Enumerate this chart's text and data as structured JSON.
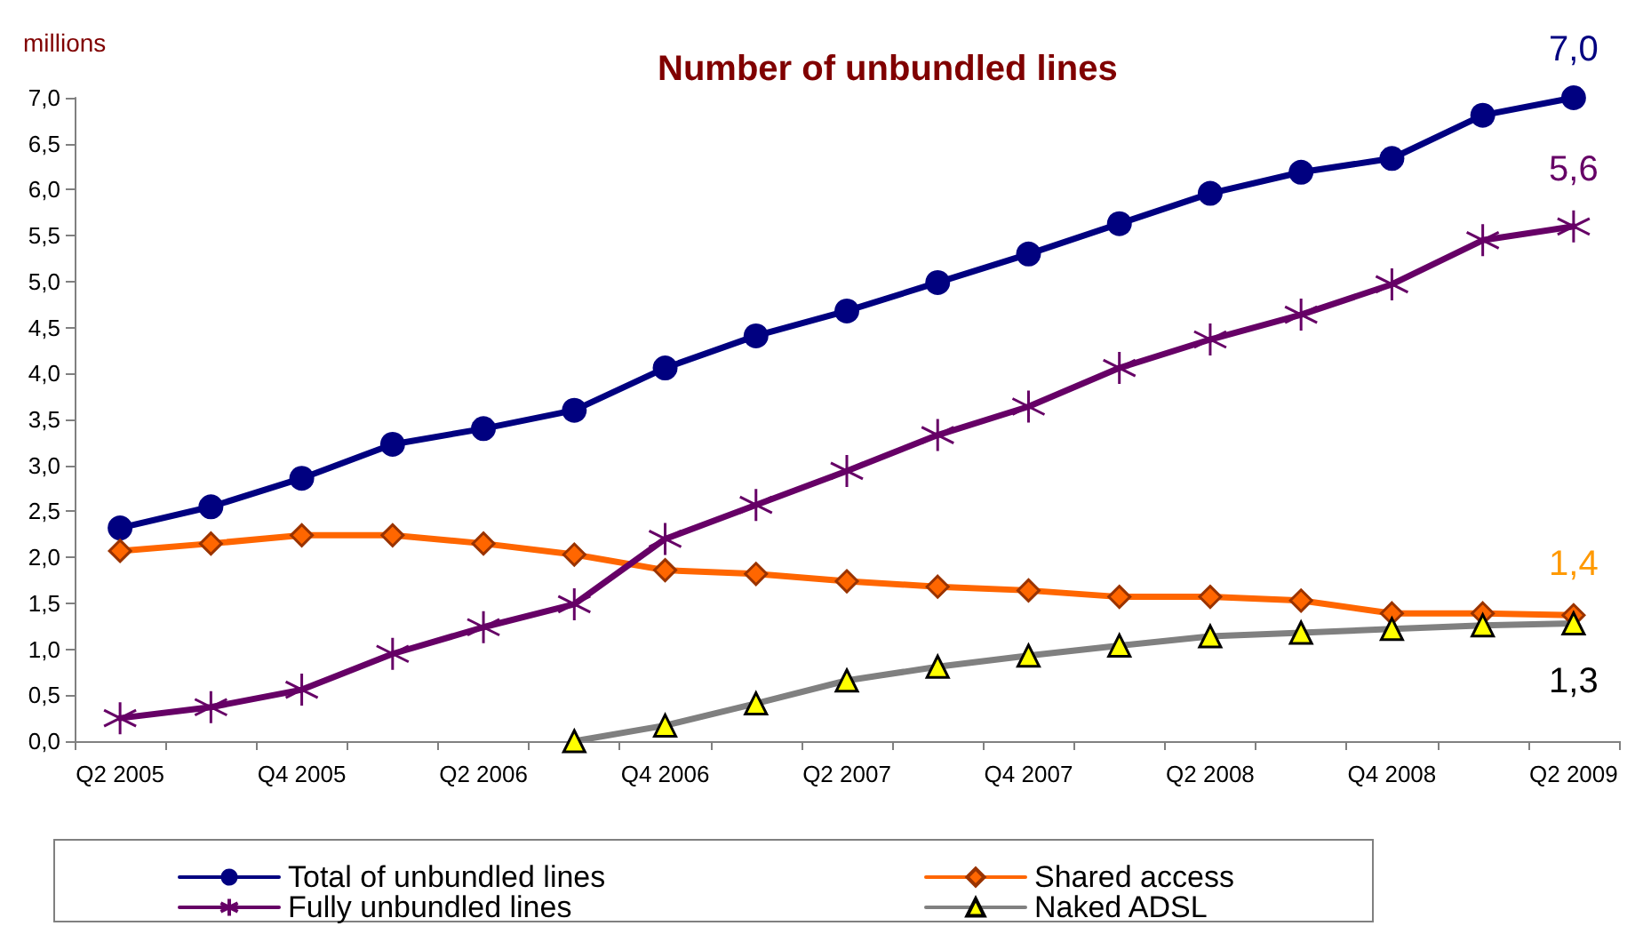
{
  "chart_data": {
    "type": "line",
    "title": "Number of unbundled lines",
    "ylabel": "millions",
    "categories": [
      "Q2 2005",
      null,
      "Q4 2005",
      null,
      "Q2 2006",
      null,
      "Q4 2006",
      null,
      "Q2 2007",
      null,
      "Q4 2007",
      null,
      "Q2 2008",
      null,
      "Q4 2008",
      null,
      "Q2 2009"
    ],
    "series": [
      {
        "name": "Total of unbundled lines",
        "color": "#000080",
        "marker": "circle",
        "values": [
          2.32,
          2.55,
          2.86,
          3.23,
          3.4,
          3.6,
          4.06,
          4.41,
          4.68,
          4.99,
          5.3,
          5.63,
          5.96,
          6.19,
          6.34,
          6.81,
          7.0
        ],
        "value_labels": [
          null,
          null,
          null,
          null,
          null,
          null,
          null,
          null,
          null,
          null,
          null,
          null,
          null,
          null,
          null,
          null,
          "7,0"
        ]
      },
      {
        "name": "Shared access",
        "color": "#ff6600",
        "marker": "diamond",
        "values": [
          2.07,
          2.15,
          2.24,
          2.24,
          2.15,
          2.03,
          1.86,
          1.82,
          1.74,
          1.68,
          1.64,
          1.57,
          1.57,
          1.53,
          1.39,
          1.39,
          1.37
        ],
        "value_labels": [
          null,
          null,
          null,
          null,
          null,
          null,
          null,
          null,
          null,
          null,
          null,
          null,
          null,
          null,
          null,
          null,
          "1,4"
        ]
      },
      {
        "name": "Fully unbundled lines",
        "color": "#660066",
        "marker": "cross",
        "values": [
          0.25,
          0.37,
          0.56,
          0.95,
          1.24,
          1.49,
          2.2,
          2.57,
          2.94,
          3.33,
          3.64,
          4.06,
          4.37,
          4.64,
          4.97,
          5.45,
          5.6
        ],
        "value_labels": [
          null,
          null,
          null,
          null,
          null,
          null,
          null,
          null,
          null,
          null,
          null,
          null,
          null,
          null,
          null,
          null,
          "5,6"
        ]
      },
      {
        "name": "Naked ADSL",
        "color": "#808080",
        "marker": "triangle",
        "values": [
          null,
          null,
          null,
          null,
          null,
          0,
          0.17,
          0.41,
          0.66,
          0.81,
          0.93,
          1.04,
          1.14,
          1.18,
          1.22,
          1.26,
          1.28
        ],
        "value_labels": [
          null,
          null,
          null,
          null,
          null,
          null,
          null,
          null,
          null,
          null,
          null,
          null,
          null,
          null,
          null,
          null,
          "1,3"
        ]
      }
    ],
    "ylim": [
      0,
      7
    ],
    "yticks": [
      {
        "value": 0,
        "label": "0,0"
      },
      {
        "value": 0.5,
        "label": "0,5"
      },
      {
        "value": 1,
        "label": "1,0"
      },
      {
        "value": 1.5,
        "label": "1,5"
      },
      {
        "value": 2,
        "label": "2,0"
      },
      {
        "value": 2.5,
        "label": "2,5"
      },
      {
        "value": 3,
        "label": "3,0"
      },
      {
        "value": 3.5,
        "label": "3,5"
      },
      {
        "value": 4,
        "label": "4,0"
      },
      {
        "value": 4.5,
        "label": "4,5"
      },
      {
        "value": 5,
        "label": "5,0"
      },
      {
        "value": 5.5,
        "label": "5,5"
      },
      {
        "value": 6,
        "label": "6,0"
      },
      {
        "value": 6.5,
        "label": "6,5"
      },
      {
        "value": 7,
        "label": "7,0"
      }
    ],
    "grid": false,
    "legend": "bottom",
    "line_style": "solid"
  }
}
